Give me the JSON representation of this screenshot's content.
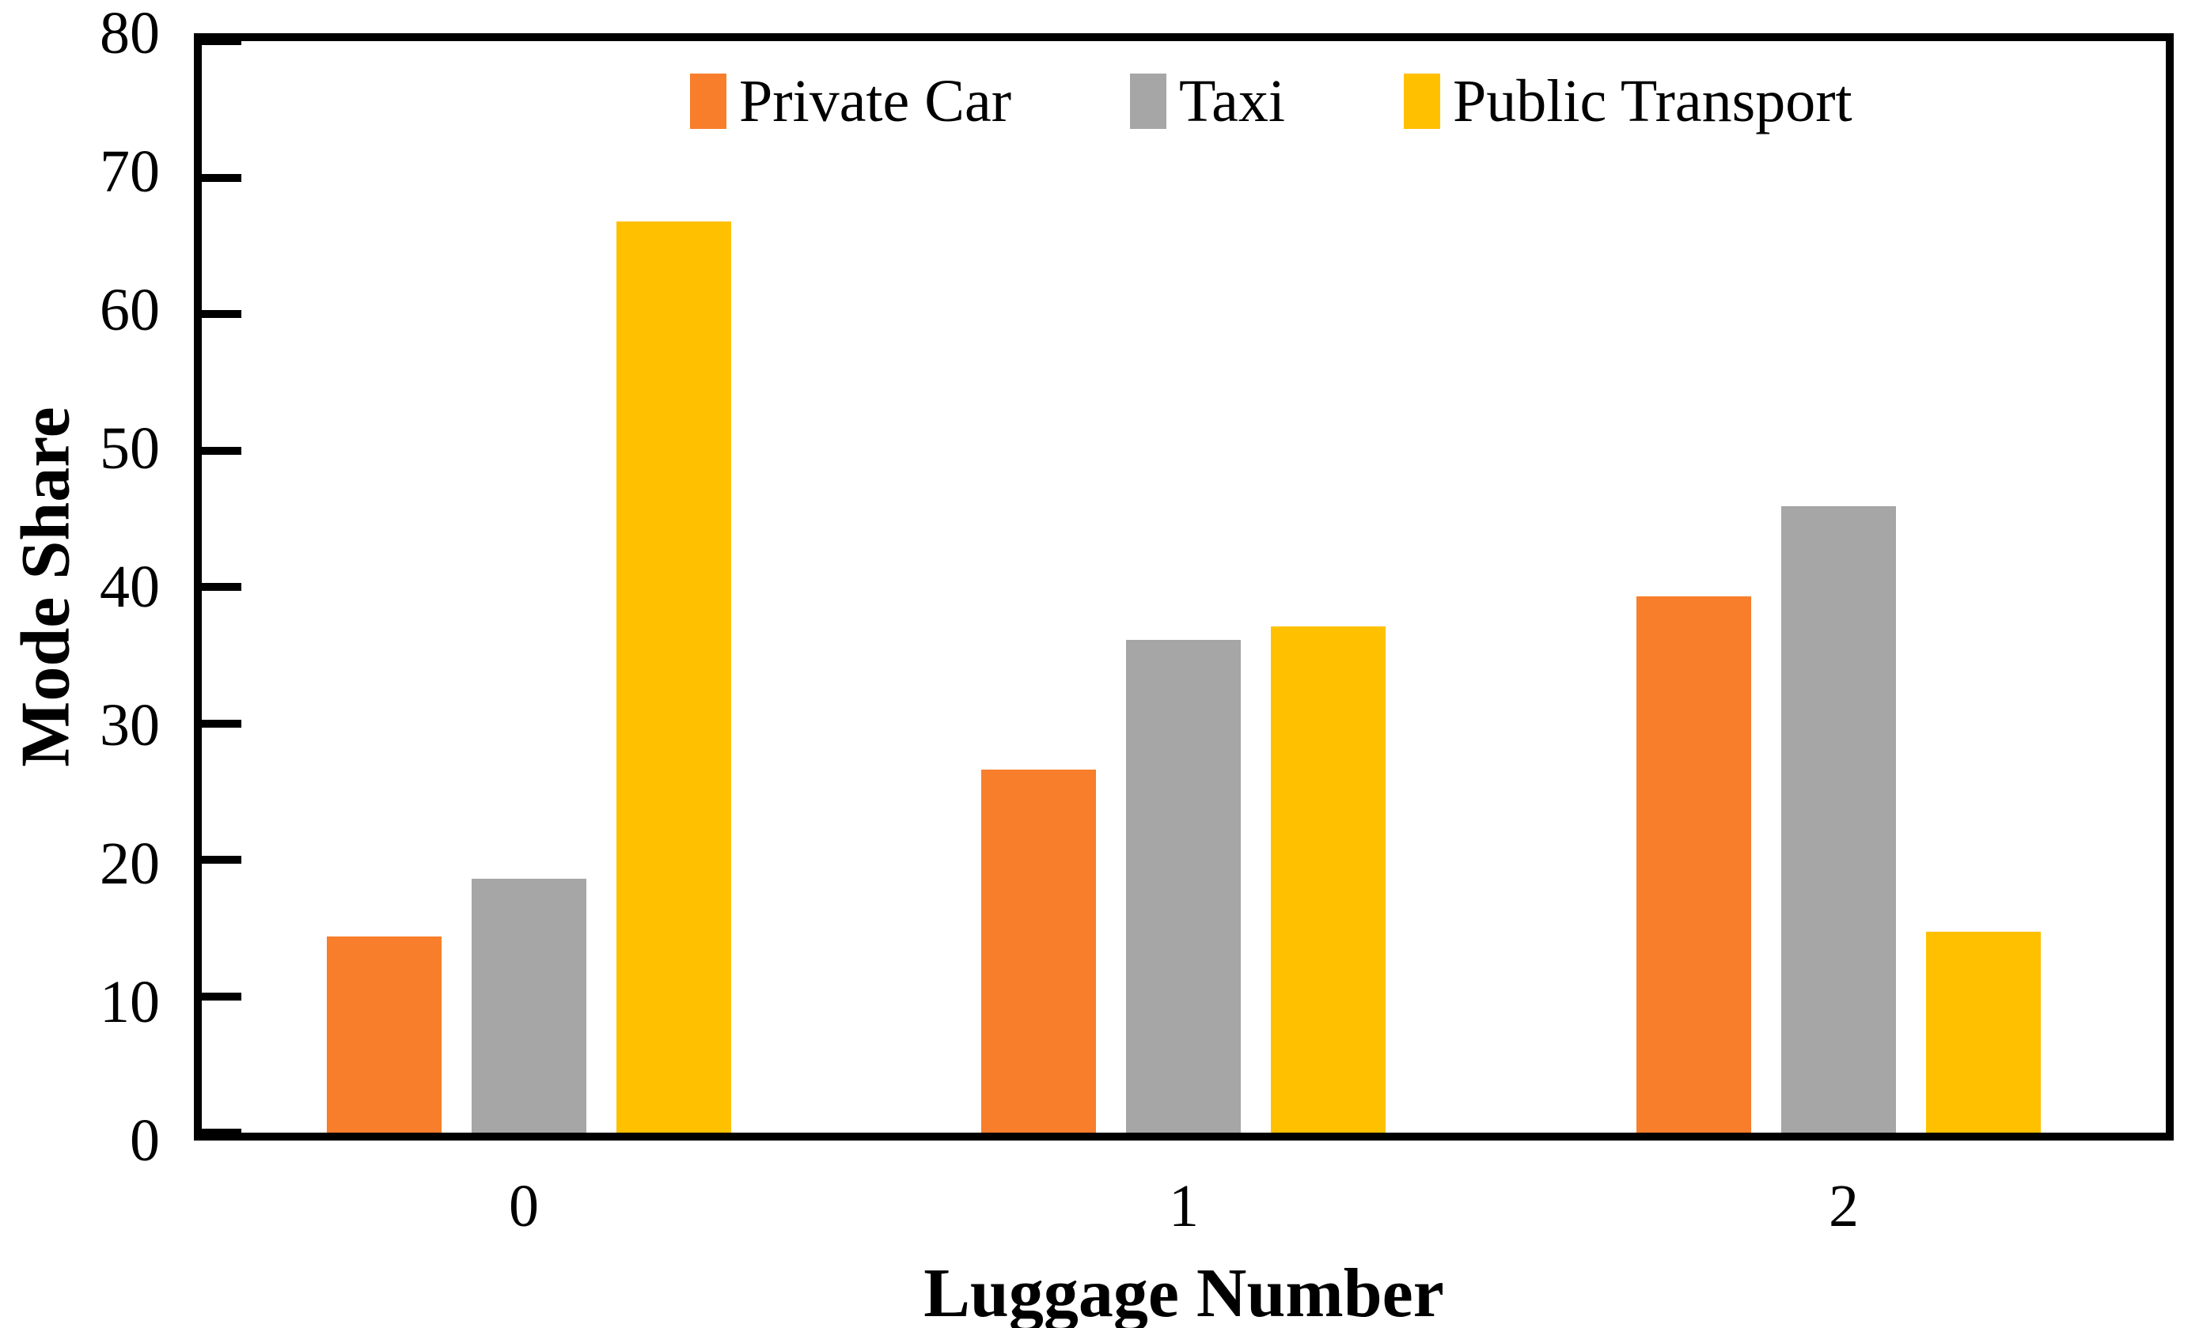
{
  "chart_data": {
    "type": "bar",
    "title": "",
    "xlabel": "Luggage Number",
    "ylabel": "Mode Share",
    "categories": [
      "0",
      "1",
      "2"
    ],
    "series": [
      {
        "name": "Private Car",
        "color": "#F87E2B",
        "values": [
          14.4,
          26.6,
          39.3
        ]
      },
      {
        "name": "Taxi",
        "color": "#A6A6A6",
        "values": [
          18.6,
          36.1,
          45.9
        ]
      },
      {
        "name": "Public Transport",
        "color": "#FFC000",
        "values": [
          66.8,
          37.1,
          14.7
        ]
      }
    ],
    "ylim": [
      0,
      80
    ],
    "yticks": [
      0,
      10,
      20,
      30,
      40,
      50,
      60,
      70,
      80
    ],
    "grid": false,
    "legend_position": "top-inside",
    "tick_direction": "in",
    "axis_color": "#000000",
    "background_color": "#FFFFFF"
  }
}
